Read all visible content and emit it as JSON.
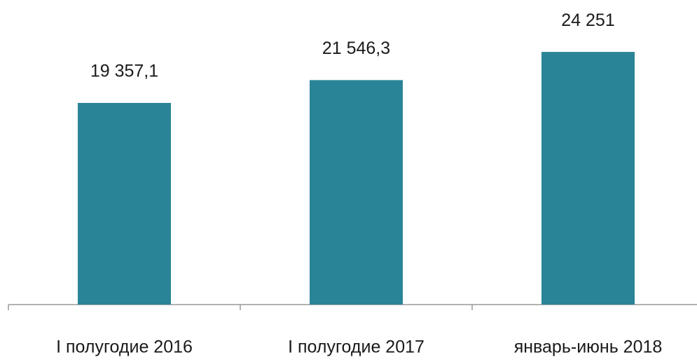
{
  "chart_data": {
    "type": "bar",
    "categories": [
      "I полугодие 2016",
      "I полугодие 2017",
      "январь-июнь 2018"
    ],
    "values": [
      19357.1,
      21546.3,
      24251
    ],
    "value_labels": [
      "19 357,1",
      "21 546,3",
      "24 251"
    ],
    "color": "#2a8498",
    "ylim": [
      0,
      25000
    ]
  }
}
